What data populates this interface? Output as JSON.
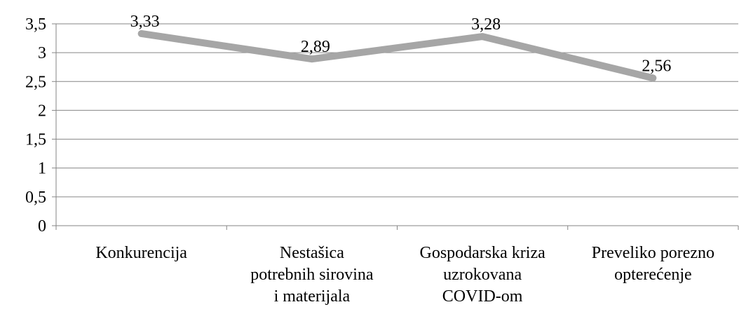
{
  "chart_data": {
    "type": "line",
    "categories": [
      "Konkurencija",
      "Nestašica\npotrebnih sirovina\ni materijala",
      "Gospodarska kriza\nuzrokovana\nCOVID-om",
      "Preveliko porezno\nopterećenje"
    ],
    "series": [
      {
        "color": "#a6a6a6",
        "values": [
          3.33,
          2.89,
          3.28,
          2.56
        ],
        "value_labels": [
          "3,33",
          "2,89",
          "3,28",
          "2,56"
        ]
      }
    ],
    "ylim": [
      0,
      3.5
    ],
    "yticks": [
      0,
      {
        "value": 0.5,
        "label": "0,5"
      },
      1,
      {
        "value": 1.5,
        "label": "1,5"
      },
      2,
      {
        "value": 2.5,
        "label": "2,5"
      },
      3,
      {
        "value": 3.5,
        "label": "3,5"
      }
    ],
    "grid": true
  }
}
